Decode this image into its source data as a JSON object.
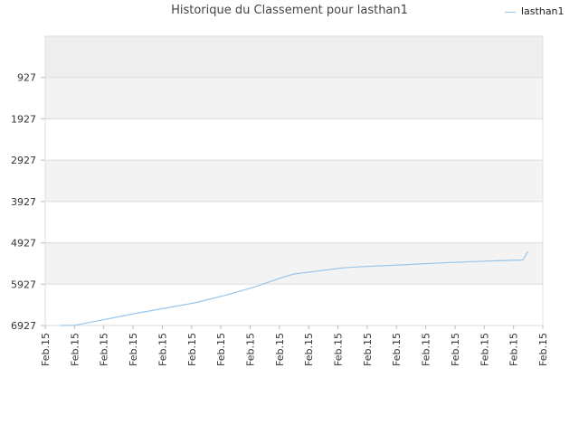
{
  "chart_data": {
    "type": "line",
    "title": "Historique du Classement pour lasthan1",
    "xlabel": "",
    "ylabel": "",
    "y_inverted": true,
    "ylim": [
      6927,
      -73
    ],
    "y_ticks": [
      "927",
      "1927",
      "2927",
      "3927",
      "4927",
      "5927",
      "6927"
    ],
    "y_tick_values": [
      927,
      1927,
      2927,
      3927,
      4927,
      5927,
      6927
    ],
    "x_ticks": [
      "Feb.15",
      "Feb.15",
      "Feb.15",
      "Feb.15",
      "Feb.15",
      "Feb.15",
      "Feb.15",
      "Feb.15",
      "Feb.15",
      "Feb.15",
      "Feb.15",
      "Feb.15",
      "Feb.15",
      "Feb.15",
      "Feb.15",
      "Feb.15",
      "Feb.15",
      "Feb.15"
    ],
    "grid": true,
    "legend": "top-right",
    "series": [
      {
        "name": "lasthan1",
        "color": "#99c6ec",
        "x": [
          0.03,
          0.06,
          0.12,
          0.18,
          0.24,
          0.3,
          0.36,
          0.42,
          0.48,
          0.5,
          0.54,
          0.6,
          0.64,
          0.7,
          0.75,
          0.8,
          0.86,
          0.91,
          0.96,
          0.97
        ],
        "values": [
          6927,
          6920,
          6780,
          6640,
          6510,
          6380,
          6200,
          6000,
          5750,
          5680,
          5620,
          5530,
          5500,
          5470,
          5440,
          5410,
          5380,
          5360,
          5340,
          5130
        ]
      }
    ]
  }
}
